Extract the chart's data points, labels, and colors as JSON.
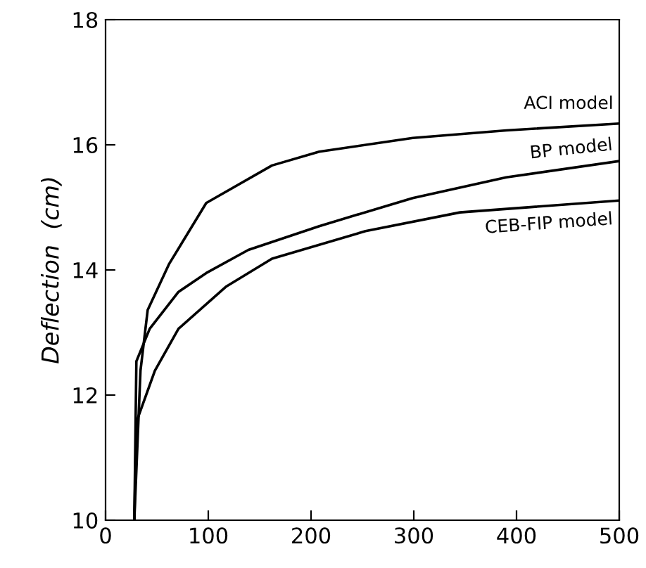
{
  "chart_data": {
    "type": "line",
    "ylabel": "Deflection  (cm)",
    "xlim": [
      0,
      500
    ],
    "ylim": [
      10,
      18
    ],
    "xticks": [
      0,
      100,
      200,
      300,
      400,
      500
    ],
    "yticks": [
      10,
      12,
      14,
      16,
      18
    ],
    "grid": false,
    "legend": false,
    "marker": "none",
    "line_style": "solid",
    "series": [
      {
        "name": "ACI model",
        "color": "#000000",
        "x": [
          28,
          34,
          41,
          62,
          98,
          162,
          208,
          299,
          390,
          500
        ],
        "values": [
          10,
          12.39,
          13.36,
          14.1,
          15.07,
          15.67,
          15.89,
          16.11,
          16.23,
          16.34
        ]
      },
      {
        "name": "BP model",
        "color": "#000000",
        "x": [
          28,
          30,
          43,
          71,
          98,
          139,
          208,
          299,
          390,
          500
        ],
        "values": [
          10,
          12.54,
          13.06,
          13.65,
          13.95,
          14.32,
          14.7,
          15.15,
          15.48,
          15.74
        ]
      },
      {
        "name": "CEB-FIP model",
        "color": "#000000",
        "x": [
          28,
          30,
          48,
          71,
          117,
          162,
          253,
          345,
          500
        ],
        "values": [
          10,
          11.57,
          12.39,
          13.06,
          13.73,
          14.18,
          14.62,
          14.92,
          15.11
        ]
      }
    ]
  }
}
